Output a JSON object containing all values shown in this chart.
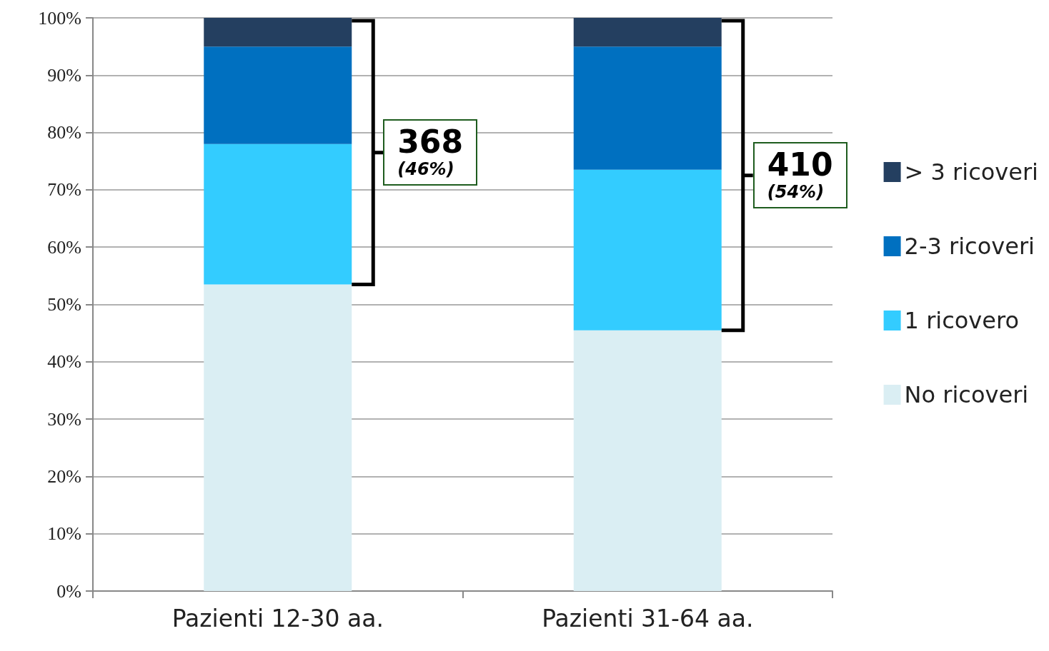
{
  "chart_data": {
    "type": "bar",
    "stacked": true,
    "categories": [
      "Pazienti 12-30 aa.",
      "Pazienti 31-64 aa."
    ],
    "series": [
      {
        "name": "No ricoveri",
        "color": "#daeef3",
        "values": [
          53.5,
          45.5
        ]
      },
      {
        "name": "1 ricovero",
        "color": "#33ccff",
        "values": [
          24.5,
          28
        ]
      },
      {
        "name": "2-3 ricoveri",
        "color": "#0070c0",
        "values": [
          17,
          21.5
        ]
      },
      {
        "name": "> 3 ricoveri",
        "color": "#243f60",
        "values": [
          5,
          5
        ]
      }
    ],
    "ylim": [
      0,
      100
    ],
    "yticks": [
      {
        "value": 0,
        "label": "0%"
      },
      {
        "value": 10,
        "label": "10%"
      },
      {
        "value": 20,
        "label": "20%"
      },
      {
        "value": 30,
        "label": "30%"
      },
      {
        "value": 40,
        "label": "40%"
      },
      {
        "value": 50,
        "label": "50%"
      },
      {
        "value": 60,
        "label": "60%"
      },
      {
        "value": 70,
        "label": "70%"
      },
      {
        "value": 80,
        "label": "80%"
      },
      {
        "value": 90,
        "label": "90%"
      },
      {
        "value": 100,
        "label": "100%"
      }
    ],
    "grid": "y",
    "legend": "right",
    "annotations": [
      "368\n(46%)",
      "410\n(54%)"
    ]
  }
}
